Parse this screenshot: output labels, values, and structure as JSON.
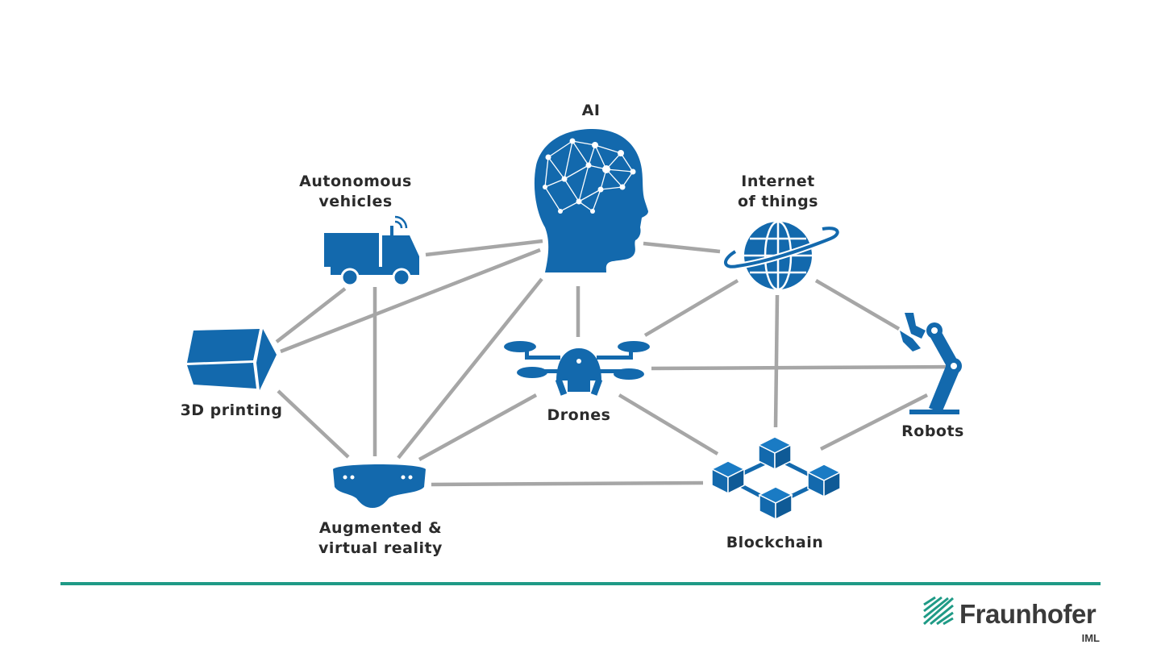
{
  "nodes": [
    {
      "id": "ai",
      "label_lines": [
        "AI"
      ],
      "icon": "brain-head-icon"
    },
    {
      "id": "autonomous-vehicles",
      "label_lines": [
        "Autonomous",
        "vehicles"
      ],
      "icon": "truck-icon"
    },
    {
      "id": "iot",
      "label_lines": [
        "Internet",
        "of things"
      ],
      "icon": "globe-icon"
    },
    {
      "id": "3d-printing",
      "label_lines": [
        "3D printing"
      ],
      "icon": "cube-icon"
    },
    {
      "id": "drones",
      "label_lines": [
        "Drones"
      ],
      "icon": "drone-icon"
    },
    {
      "id": "robots",
      "label_lines": [
        "Robots"
      ],
      "icon": "robot-arm-icon"
    },
    {
      "id": "ar-vr",
      "label_lines": [
        "Augmented &",
        "virtual reality"
      ],
      "icon": "vr-headset-icon"
    },
    {
      "id": "blockchain",
      "label_lines": [
        "Blockchain"
      ],
      "icon": "blockchain-icon"
    }
  ],
  "edges": [
    [
      "autonomous-vehicles",
      "ai"
    ],
    [
      "3d-printing",
      "ai"
    ],
    [
      "ar-vr",
      "ai"
    ],
    [
      "drones",
      "ai"
    ],
    [
      "ai",
      "iot"
    ],
    [
      "3d-printing",
      "autonomous-vehicles"
    ],
    [
      "autonomous-vehicles",
      "ar-vr"
    ],
    [
      "3d-printing",
      "ar-vr"
    ],
    [
      "drones",
      "ar-vr"
    ],
    [
      "ar-vr",
      "blockchain"
    ],
    [
      "drones",
      "iot"
    ],
    [
      "drones",
      "robots"
    ],
    [
      "drones",
      "blockchain"
    ],
    [
      "iot",
      "robots"
    ],
    [
      "iot",
      "blockchain"
    ],
    [
      "robots",
      "blockchain"
    ]
  ],
  "colors": {
    "icon": "#1369ad",
    "edge": "#a6a6a6",
    "rule": "#1f9a86",
    "text": "#2b2b2b"
  },
  "logo": {
    "name": "Fraunhofer",
    "sub": "IML"
  }
}
